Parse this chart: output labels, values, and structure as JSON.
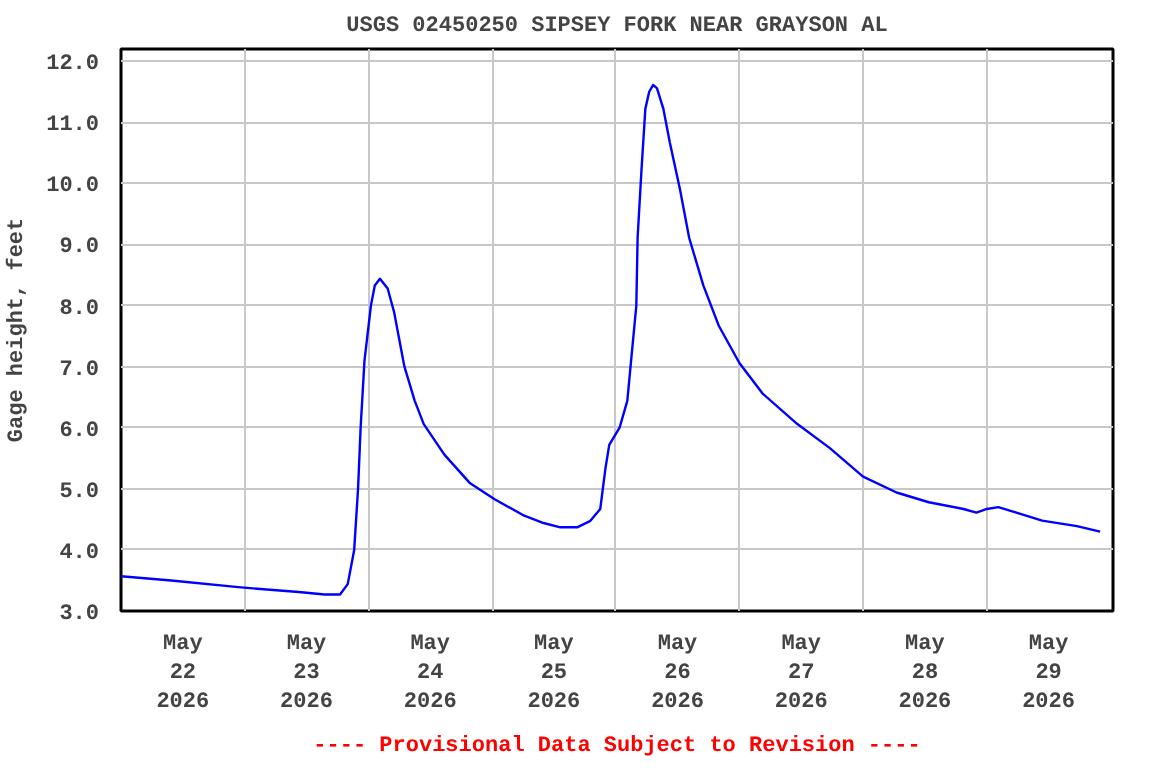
{
  "chart_data": {
    "type": "line",
    "title": "USGS 02450250 SIPSEY FORK NEAR GRAYSON AL",
    "ylabel": "Gage height, feet",
    "annotations": [
      "---- Provisional Data Subject to Revision ----"
    ],
    "series": [
      {
        "color": "#0000ff",
        "x": [
          "2026-05-22T00:00",
          "2026-05-22T09:45",
          "2026-05-22T22:45",
          "2026-05-23T10:30",
          "2026-05-23T15:30",
          "2026-05-23T18:30",
          "2026-05-23T20:00",
          "2026-05-23T21:15",
          "2026-05-23T22:00",
          "2026-05-23T22:30",
          "2026-05-23T23:15",
          "2026-05-24T00:30",
          "2026-05-24T01:15",
          "2026-05-24T02:15",
          "2026-05-24T03:45",
          "2026-05-24T05:00",
          "2026-05-24T07:00",
          "2026-05-24T09:00",
          "2026-05-24T10:45",
          "2026-05-24T14:45",
          "2026-05-24T19:45",
          "2026-05-25T00:30",
          "2026-05-25T06:15",
          "2026-05-25T10:00",
          "2026-05-25T13:15",
          "2026-05-25T16:30",
          "2026-05-25T19:00",
          "2026-05-25T21:00",
          "2026-05-25T22:00",
          "2026-05-25T22:45",
          "2026-05-26T00:45",
          "2026-05-26T02:15",
          "2026-05-26T03:00",
          "2026-05-26T04:00",
          "2026-05-26T04:15",
          "2026-05-26T05:00",
          "2026-05-26T05:45",
          "2026-05-26T06:30",
          "2026-05-26T07:15",
          "2026-05-26T08:00",
          "2026-05-26T09:15",
          "2026-05-26T10:30",
          "2026-05-26T12:30",
          "2026-05-26T14:15",
          "2026-05-26T17:00",
          "2026-05-26T20:00",
          "2026-05-27T00:00",
          "2026-05-27T04:30",
          "2026-05-27T11:15",
          "2026-05-27T17:30",
          "2026-05-28T00:00",
          "2026-05-28T06:30",
          "2026-05-28T12:45",
          "2026-05-28T19:30",
          "2026-05-28T22:00",
          "2026-05-29T00:00",
          "2026-05-29T02:15",
          "2026-05-29T05:45",
          "2026-05-29T10:45",
          "2026-05-29T17:30",
          "2026-05-29T22:00"
        ],
        "values": [
          3.57,
          3.5,
          3.39,
          3.31,
          3.27,
          3.27,
          3.44,
          4.0,
          5.0,
          6.0,
          7.1,
          8.0,
          8.33,
          8.44,
          8.28,
          7.89,
          7.0,
          6.44,
          6.06,
          5.56,
          5.09,
          4.83,
          4.56,
          4.44,
          4.37,
          4.37,
          4.47,
          4.67,
          5.33,
          5.72,
          6.0,
          6.44,
          7.11,
          8.0,
          9.11,
          10.22,
          11.22,
          11.5,
          11.61,
          11.56,
          11.22,
          10.67,
          9.89,
          9.11,
          8.33,
          7.67,
          7.06,
          6.56,
          6.06,
          5.67,
          5.2,
          4.94,
          4.78,
          4.67,
          4.61,
          4.67,
          4.7,
          4.61,
          4.48,
          4.39,
          4.3
        ]
      }
    ],
    "xlim": [
      "2026-05-22T00:00",
      "2026-05-30T00:30"
    ],
    "xticks": [
      {
        "value": "2026-05-22T12:00",
        "label": "May\n22\n2026"
      },
      {
        "value": "2026-05-23T12:00",
        "label": "May\n23\n2026"
      },
      {
        "value": "2026-05-24T12:00",
        "label": "May\n24\n2026"
      },
      {
        "value": "2026-05-25T12:00",
        "label": "May\n25\n2026"
      },
      {
        "value": "2026-05-26T12:00",
        "label": "May\n26\n2026"
      },
      {
        "value": "2026-05-27T12:00",
        "label": "May\n27\n2026"
      },
      {
        "value": "2026-05-28T12:00",
        "label": "May\n28\n2026"
      },
      {
        "value": "2026-05-29T12:00",
        "label": "May\n29\n2026"
      },
      {
        "value": "2026-05-23",
        "label": null
      },
      {
        "value": "2026-05-24",
        "label": null
      },
      {
        "value": "2026-05-25",
        "label": null
      },
      {
        "value": "2026-05-26",
        "label": null
      },
      {
        "value": "2026-05-27",
        "label": null
      },
      {
        "value": "2026-05-28",
        "label": null
      },
      {
        "value": "2026-05-29",
        "label": null
      }
    ],
    "ylim": [
      3,
      12.2
    ],
    "yticks": [
      {
        "value": 3,
        "label": "3.0"
      },
      {
        "value": 4,
        "label": "4.0"
      },
      {
        "value": 5,
        "label": "5.0"
      },
      {
        "value": 6,
        "label": "6.0"
      },
      {
        "value": 7,
        "label": "7.0"
      },
      {
        "value": 8,
        "label": "8.0"
      },
      {
        "value": 9,
        "label": "9.0"
      },
      {
        "value": 10,
        "label": "10.0"
      },
      {
        "value": 11,
        "label": "11.0"
      },
      {
        "value": 12,
        "label": "12.0"
      }
    ],
    "grid": true,
    "line_style": "solid"
  }
}
